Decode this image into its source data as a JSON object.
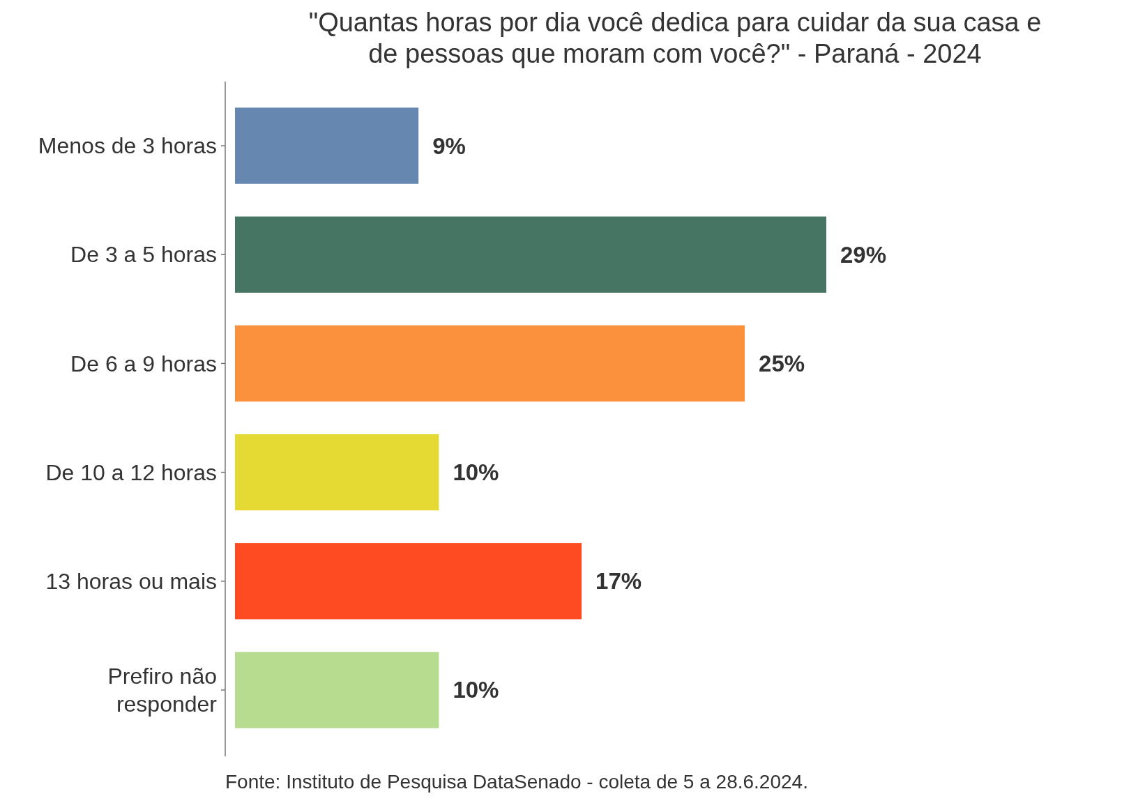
{
  "chart_data": {
    "type": "bar",
    "orientation": "horizontal",
    "title": "\"Quantas horas por dia você dedica para cuidar da sua casa e de pessoas que moram com você?\" - Paraná - 2024",
    "categories": [
      "Menos de 3 horas",
      "De 3 a 5 horas",
      "De 6 a 9 horas",
      "De 10 a 12 horas",
      "13 horas ou mais",
      "Prefiro não responder"
    ],
    "values": [
      9,
      29,
      25,
      10,
      17,
      10
    ],
    "colors": [
      "#6688b0",
      "#467563",
      "#fb913c",
      "#e5d934",
      "#ff4b22",
      "#b8dc8f"
    ],
    "value_labels": [
      "9%",
      "29%",
      "25%",
      "10%",
      "17%",
      "10%"
    ],
    "annotations": [
      "Fonte: Instituto de Pesquisa DataSenado - coleta de 5 a 28.6.2024."
    ]
  }
}
